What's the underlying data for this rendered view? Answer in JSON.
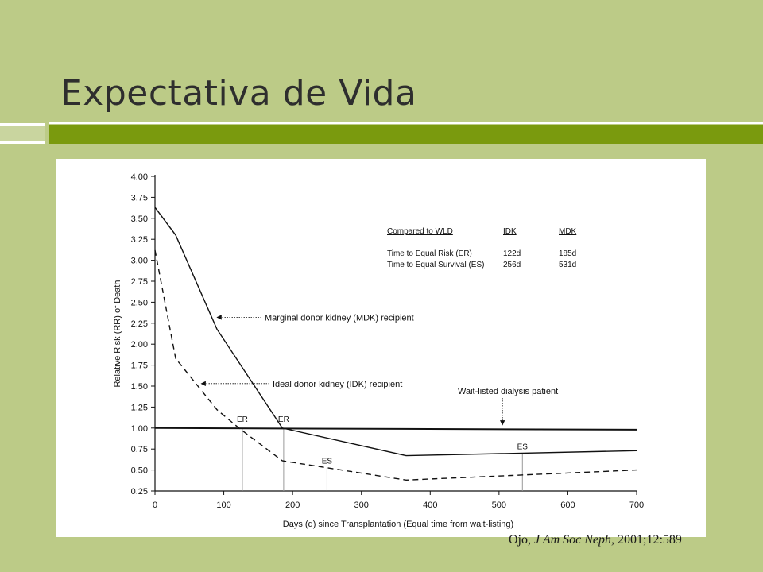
{
  "slide": {
    "title": "Expectativa de Vida",
    "citation": {
      "authors": "Ojo, ",
      "journal": "J Am Soc Neph",
      "details": ", 2001;12:589"
    },
    "colors": {
      "background": "#bccb87",
      "accent_bar": "#7a9a0e"
    }
  },
  "chart_data": {
    "type": "line",
    "xlabel": "Days (d) since Transplantation (Equal time from wait-listing)",
    "ylabel": "Relative Risk (RR) of Death",
    "xlim": [
      0,
      700
    ],
    "ylim": [
      0.25,
      4.0
    ],
    "xticks": [
      0,
      100,
      200,
      300,
      400,
      500,
      600,
      700
    ],
    "yticks": [
      0.25,
      0.5,
      0.75,
      1.0,
      1.25,
      1.5,
      1.75,
      2.0,
      2.25,
      2.5,
      2.75,
      3.0,
      3.25,
      3.5,
      3.75,
      4.0
    ],
    "xtick_labels": [
      "0",
      "100",
      "200",
      "300",
      "400",
      "500",
      "600",
      "700"
    ],
    "ytick_labels": [
      "0.25",
      "0.50",
      "0.75",
      "1.00",
      "1.25",
      "1.50",
      "1.75",
      "2.00",
      "2.25",
      "2.50",
      "2.75",
      "3.00",
      "3.25",
      "3.50",
      "3.75",
      "4.00"
    ],
    "series": [
      {
        "name": "Marginal donor kidney (MDK) recipient",
        "style": "solid",
        "x": [
          0,
          30,
          90,
          185,
          365,
          700
        ],
        "y": [
          3.63,
          3.3,
          2.18,
          1.0,
          0.67,
          0.73
        ]
      },
      {
        "name": "Ideal donor kidney (IDK) recipient",
        "style": "dashed",
        "x": [
          0,
          30,
          90,
          122,
          185,
          365,
          700
        ],
        "y": [
          3.12,
          1.83,
          1.22,
          1.0,
          0.61,
          0.38,
          0.5
        ]
      },
      {
        "name": "Wait-listed dialysis patient",
        "style": "solid-bold",
        "x": [
          0,
          700
        ],
        "y": [
          1.0,
          0.98
        ]
      }
    ],
    "table": {
      "headers": [
        "Compared to WLD",
        "IDK",
        "MDK"
      ],
      "rows": [
        [
          "Time to Equal Risk (ER)",
          "122d",
          "185d"
        ],
        [
          "Time to Equal Survival (ES)",
          "256d",
          "531d"
        ]
      ]
    },
    "markers": [
      {
        "label": "ER",
        "x": 127,
        "y_top": 1.0
      },
      {
        "label": "ER",
        "x": 187,
        "y_top": 1.0
      },
      {
        "label": "ES",
        "x": 250,
        "y_top": 0.53
      },
      {
        "label": "ES",
        "x": 534,
        "y_top": 0.7
      }
    ],
    "annotations": [
      {
        "text": "Marginal donor kidney (MDK) recipient",
        "arrow_to_x": 88,
        "arrow_to_y": 2.32
      },
      {
        "text": "Ideal donor kidney (IDK) recipient",
        "arrow_to_x": 65,
        "arrow_to_y": 1.53
      },
      {
        "text": "Wait-listed dialysis patient",
        "arrow_to_x": 505,
        "arrow_to_y": 1.01
      }
    ]
  }
}
